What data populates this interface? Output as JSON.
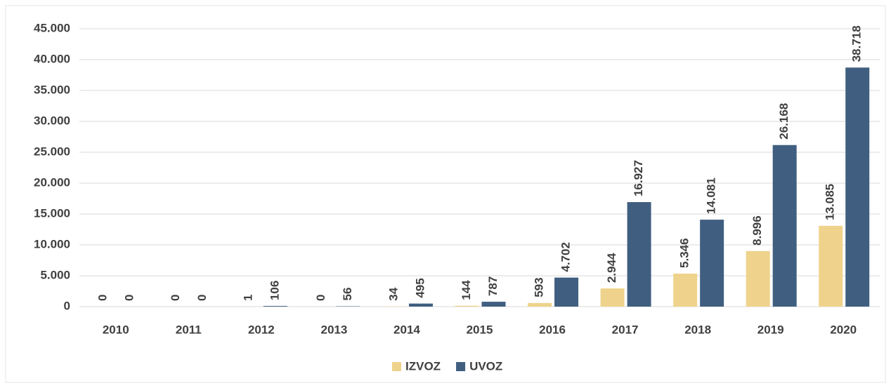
{
  "chart_data": {
    "type": "bar",
    "categories": [
      "2010",
      "2011",
      "2012",
      "2013",
      "2014",
      "2015",
      "2016",
      "2017",
      "2018",
      "2019",
      "2020"
    ],
    "series": [
      {
        "name": "IZVOZ",
        "color": "#efd38c",
        "values": [
          0,
          0,
          1,
          0,
          34,
          144,
          593,
          2944,
          5346,
          8996,
          13085
        ],
        "value_labels": [
          "0",
          "0",
          "1",
          "0",
          "34",
          "144",
          "593",
          "2.944",
          "5.346",
          "8.996",
          "13.085"
        ]
      },
      {
        "name": "UVOZ",
        "color": "#405f80",
        "values": [
          0,
          0,
          106,
          56,
          495,
          787,
          4702,
          16927,
          14081,
          26168,
          38718
        ],
        "value_labels": [
          "0",
          "0",
          "106",
          "56",
          "495",
          "787",
          "4.702",
          "16.927",
          "14.081",
          "26.168",
          "38.718"
        ]
      }
    ],
    "ylim": [
      0,
      45000
    ],
    "yticks": [
      0,
      {
        "value": 5000,
        "label": "5.000"
      },
      {
        "value": 10000,
        "label": "10.000"
      },
      {
        "value": 15000,
        "label": "15.000"
      },
      {
        "value": 20000,
        "label": "20.000"
      },
      {
        "value": 25000,
        "label": "25.000"
      },
      {
        "value": 30000,
        "label": "30.000"
      },
      {
        "value": 35000,
        "label": "35.000"
      },
      {
        "value": 40000,
        "label": "40.000"
      },
      {
        "value": 45000,
        "label": "45.000"
      }
    ],
    "grid": true,
    "legend": "bottom"
  }
}
